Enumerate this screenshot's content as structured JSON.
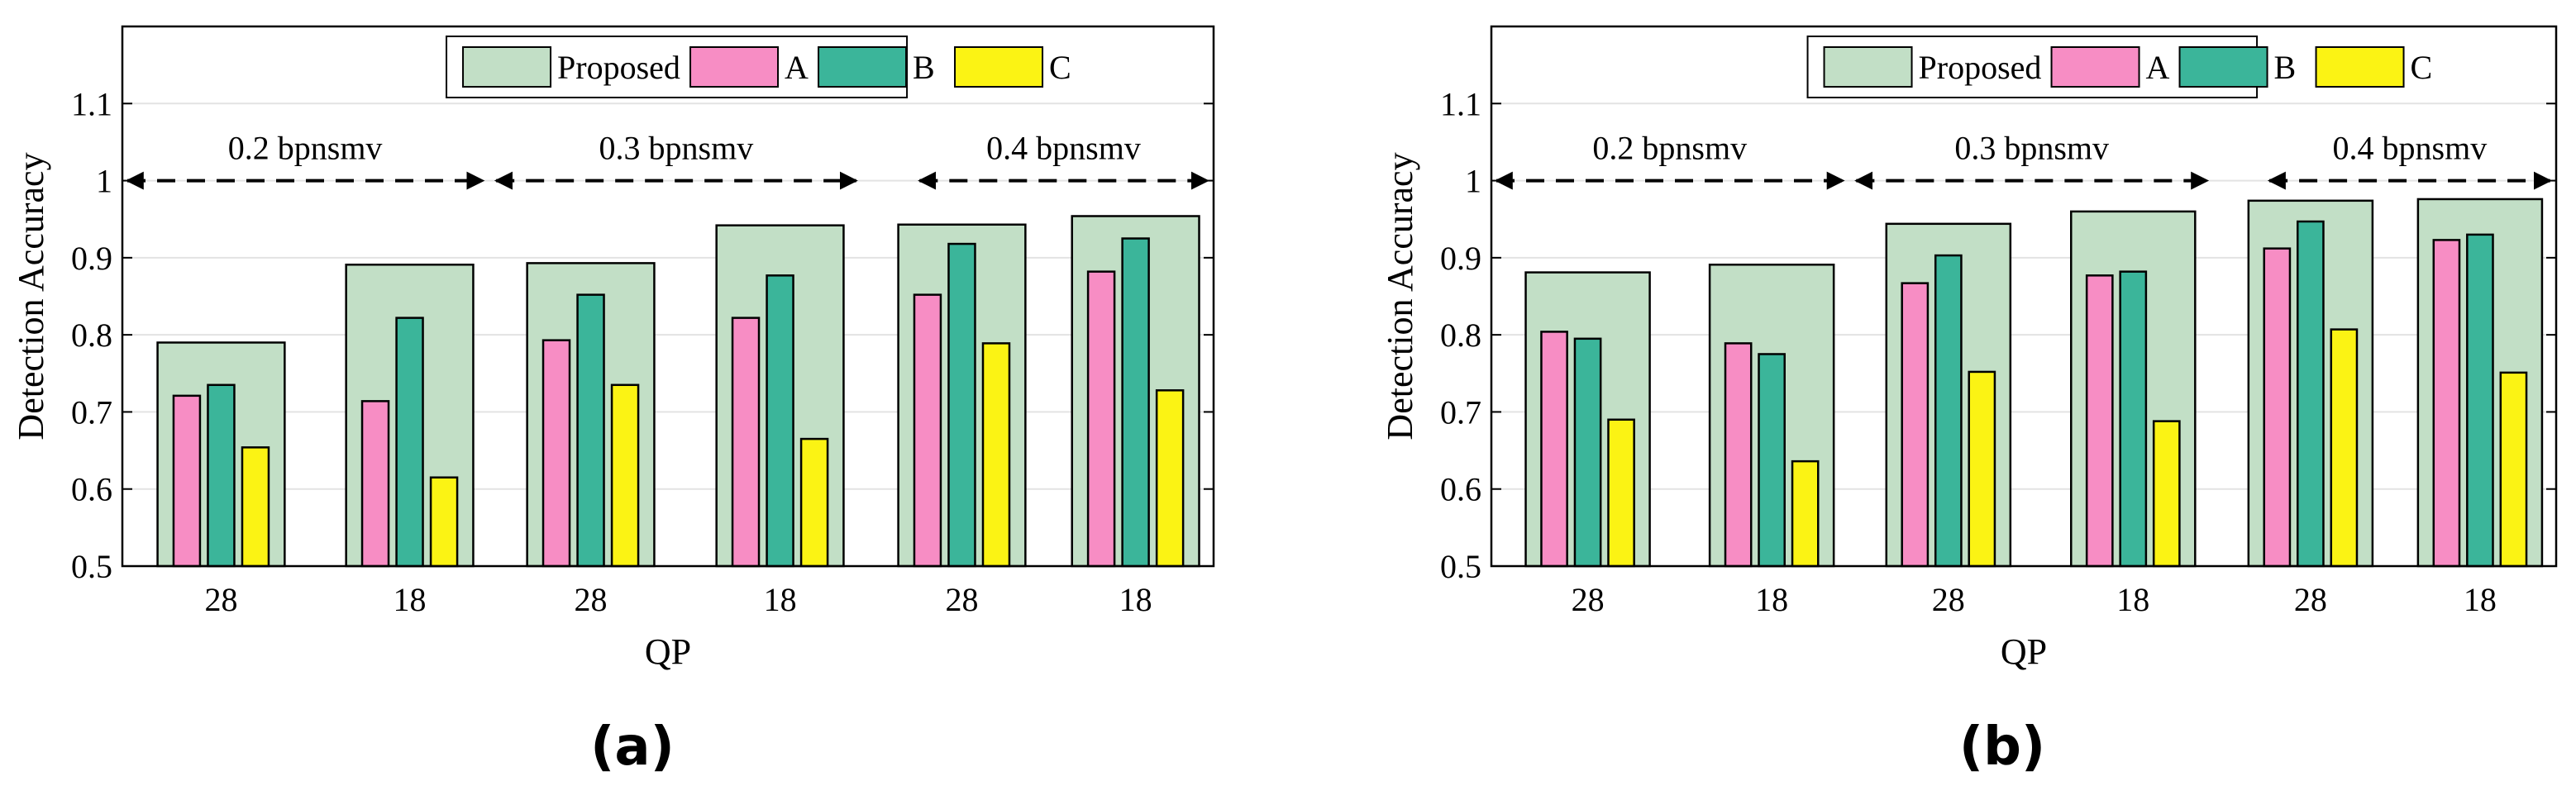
{
  "figure": {
    "panels": [
      "(a)",
      "(b)"
    ]
  },
  "colors": {
    "proposed": "#c2dfc6",
    "A": "#f78dc4",
    "B": "#3bb59a",
    "C": "#fbf314",
    "grid": "#e3e3e3"
  },
  "chart_data": [
    {
      "type": "bar",
      "panel_label": "(a)",
      "xlabel": "QP",
      "ylabel": "Detection Accuracy",
      "ylim": [
        0.5,
        1.2
      ],
      "yticks": [
        "0.5",
        "0.6",
        "0.7",
        "0.8",
        "0.9",
        "1",
        "1.1"
      ],
      "grid": true,
      "legend": {
        "position": "top-center",
        "entries": [
          "Proposed",
          "A",
          "B",
          "C"
        ]
      },
      "categories": [
        "28",
        "18",
        "28",
        "18",
        "28",
        "18"
      ],
      "groups": [
        {
          "label": "0.2 bpnsmv",
          "categories": [
            "28",
            "18"
          ]
        },
        {
          "label": "0.3 bpnsmv",
          "categories": [
            "28",
            "18"
          ]
        },
        {
          "label": "0.4 bpnsmv",
          "categories": [
            "28",
            "18"
          ]
        }
      ],
      "series": [
        {
          "name": "Proposed",
          "values": [
            0.79,
            0.891,
            0.893,
            0.942,
            0.943,
            0.954
          ]
        },
        {
          "name": "A",
          "values": [
            0.721,
            0.714,
            0.793,
            0.822,
            0.852,
            0.882
          ]
        },
        {
          "name": "B",
          "values": [
            0.735,
            0.822,
            0.852,
            0.877,
            0.918,
            0.925
          ]
        },
        {
          "name": "C",
          "values": [
            0.654,
            0.615,
            0.735,
            0.665,
            0.789,
            0.728
          ]
        }
      ]
    },
    {
      "type": "bar",
      "panel_label": "(b)",
      "xlabel": "QP",
      "ylabel": "Detection Accuracy",
      "ylim": [
        0.5,
        1.2
      ],
      "yticks": [
        "0.5",
        "0.6",
        "0.7",
        "0.8",
        "0.9",
        "1",
        "1.1"
      ],
      "grid": true,
      "legend": {
        "position": "top-center",
        "entries": [
          "Proposed",
          "A",
          "B",
          "C"
        ]
      },
      "categories": [
        "28",
        "18",
        "28",
        "18",
        "28",
        "18"
      ],
      "groups": [
        {
          "label": "0.2 bpnsmv",
          "categories": [
            "28",
            "18"
          ]
        },
        {
          "label": "0.3 bpnsmv",
          "categories": [
            "28",
            "18"
          ]
        },
        {
          "label": "0.4 bpnsmv",
          "categories": [
            "28",
            "18"
          ]
        }
      ],
      "series": [
        {
          "name": "Proposed",
          "values": [
            0.881,
            0.891,
            0.944,
            0.96,
            0.974,
            0.976
          ]
        },
        {
          "name": "A",
          "values": [
            0.804,
            0.789,
            0.867,
            0.877,
            0.912,
            0.923
          ]
        },
        {
          "name": "B",
          "values": [
            0.795,
            0.775,
            0.903,
            0.882,
            0.947,
            0.93
          ]
        },
        {
          "name": "C",
          "values": [
            0.69,
            0.636,
            0.752,
            0.688,
            0.807,
            0.751
          ]
        }
      ]
    }
  ]
}
